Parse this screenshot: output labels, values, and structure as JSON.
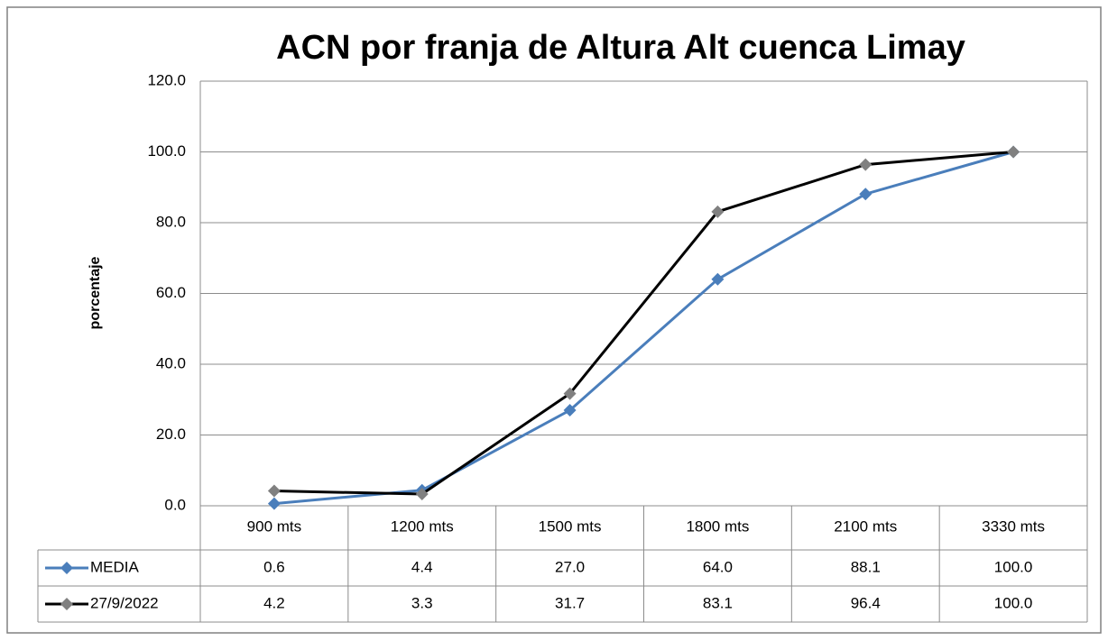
{
  "chart_data": {
    "type": "line",
    "title": "ACN por franja de Altura Alt cuenca Limay",
    "y_label": "porcentaje",
    "categories": [
      "900 mts",
      "1200 mts",
      "1500 mts",
      "1800 mts",
      "2100 mts",
      "3330 mts"
    ],
    "series": [
      {
        "name": "MEDIA",
        "color": "#4a7ebb",
        "marker_color": "#4a7ebb",
        "values": [
          0.6,
          4.4,
          27.0,
          64.0,
          88.1,
          100.0
        ],
        "value_labels": [
          "0.6",
          "4.4",
          "27.0",
          "64.0",
          "88.1",
          "100.0"
        ]
      },
      {
        "name": "27/9/2022",
        "color": "#000000",
        "marker_color": "#808080",
        "values": [
          4.2,
          3.3,
          31.7,
          83.1,
          96.4,
          100.0
        ],
        "value_labels": [
          "4.2",
          "3.3",
          "31.7",
          "83.1",
          "96.4",
          "100.0"
        ]
      }
    ],
    "ylim": [
      0,
      120
    ],
    "yticks": [
      {
        "value": 0,
        "label": "0.0"
      },
      {
        "value": 20,
        "label": "20.0"
      },
      {
        "value": 40,
        "label": "40.0"
      },
      {
        "value": 60,
        "label": "60.0"
      },
      {
        "value": 80,
        "label": "80.0"
      },
      {
        "value": 100,
        "label": "100.0"
      },
      {
        "value": 120,
        "label": "120.0"
      }
    ],
    "grid": true
  }
}
